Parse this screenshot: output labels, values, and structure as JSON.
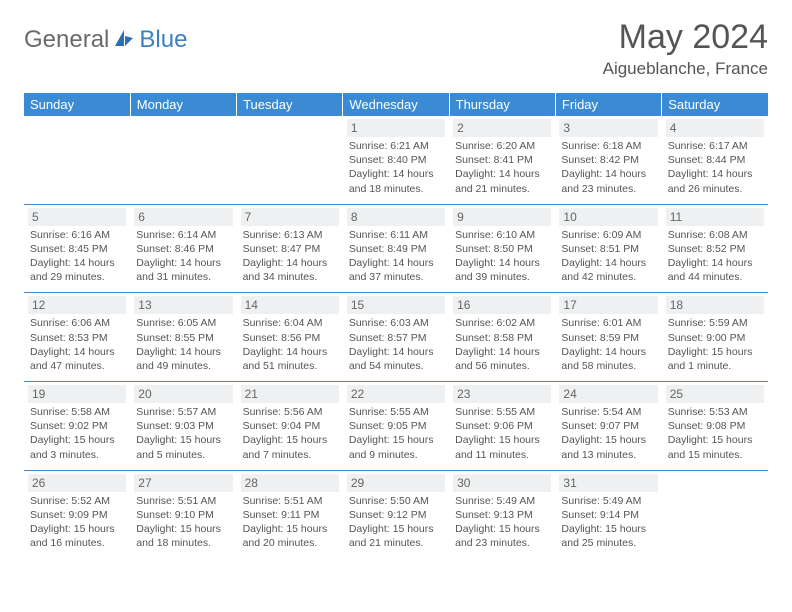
{
  "brand": {
    "part1": "General",
    "part2": "Blue"
  },
  "title": "May 2024",
  "location": "Aigueblanche, France",
  "colors": {
    "header_bg": "#3b8bd4",
    "header_text": "#ffffff",
    "daynum_bg": "#eef0f1",
    "border": "#3b8bd4",
    "text": "#555555",
    "brand_gray": "#6a6a6a",
    "brand_blue": "#3b7fc4"
  },
  "day_headers": [
    "Sunday",
    "Monday",
    "Tuesday",
    "Wednesday",
    "Thursday",
    "Friday",
    "Saturday"
  ],
  "weeks": [
    [
      {
        "n": "",
        "sr": "",
        "ss": "",
        "dl": ""
      },
      {
        "n": "",
        "sr": "",
        "ss": "",
        "dl": ""
      },
      {
        "n": "",
        "sr": "",
        "ss": "",
        "dl": ""
      },
      {
        "n": "1",
        "sr": "Sunrise: 6:21 AM",
        "ss": "Sunset: 8:40 PM",
        "dl": "Daylight: 14 hours and 18 minutes."
      },
      {
        "n": "2",
        "sr": "Sunrise: 6:20 AM",
        "ss": "Sunset: 8:41 PM",
        "dl": "Daylight: 14 hours and 21 minutes."
      },
      {
        "n": "3",
        "sr": "Sunrise: 6:18 AM",
        "ss": "Sunset: 8:42 PM",
        "dl": "Daylight: 14 hours and 23 minutes."
      },
      {
        "n": "4",
        "sr": "Sunrise: 6:17 AM",
        "ss": "Sunset: 8:44 PM",
        "dl": "Daylight: 14 hours and 26 minutes."
      }
    ],
    [
      {
        "n": "5",
        "sr": "Sunrise: 6:16 AM",
        "ss": "Sunset: 8:45 PM",
        "dl": "Daylight: 14 hours and 29 minutes."
      },
      {
        "n": "6",
        "sr": "Sunrise: 6:14 AM",
        "ss": "Sunset: 8:46 PM",
        "dl": "Daylight: 14 hours and 31 minutes."
      },
      {
        "n": "7",
        "sr": "Sunrise: 6:13 AM",
        "ss": "Sunset: 8:47 PM",
        "dl": "Daylight: 14 hours and 34 minutes."
      },
      {
        "n": "8",
        "sr": "Sunrise: 6:11 AM",
        "ss": "Sunset: 8:49 PM",
        "dl": "Daylight: 14 hours and 37 minutes."
      },
      {
        "n": "9",
        "sr": "Sunrise: 6:10 AM",
        "ss": "Sunset: 8:50 PM",
        "dl": "Daylight: 14 hours and 39 minutes."
      },
      {
        "n": "10",
        "sr": "Sunrise: 6:09 AM",
        "ss": "Sunset: 8:51 PM",
        "dl": "Daylight: 14 hours and 42 minutes."
      },
      {
        "n": "11",
        "sr": "Sunrise: 6:08 AM",
        "ss": "Sunset: 8:52 PM",
        "dl": "Daylight: 14 hours and 44 minutes."
      }
    ],
    [
      {
        "n": "12",
        "sr": "Sunrise: 6:06 AM",
        "ss": "Sunset: 8:53 PM",
        "dl": "Daylight: 14 hours and 47 minutes."
      },
      {
        "n": "13",
        "sr": "Sunrise: 6:05 AM",
        "ss": "Sunset: 8:55 PM",
        "dl": "Daylight: 14 hours and 49 minutes."
      },
      {
        "n": "14",
        "sr": "Sunrise: 6:04 AM",
        "ss": "Sunset: 8:56 PM",
        "dl": "Daylight: 14 hours and 51 minutes."
      },
      {
        "n": "15",
        "sr": "Sunrise: 6:03 AM",
        "ss": "Sunset: 8:57 PM",
        "dl": "Daylight: 14 hours and 54 minutes."
      },
      {
        "n": "16",
        "sr": "Sunrise: 6:02 AM",
        "ss": "Sunset: 8:58 PM",
        "dl": "Daylight: 14 hours and 56 minutes."
      },
      {
        "n": "17",
        "sr": "Sunrise: 6:01 AM",
        "ss": "Sunset: 8:59 PM",
        "dl": "Daylight: 14 hours and 58 minutes."
      },
      {
        "n": "18",
        "sr": "Sunrise: 5:59 AM",
        "ss": "Sunset: 9:00 PM",
        "dl": "Daylight: 15 hours and 1 minute."
      }
    ],
    [
      {
        "n": "19",
        "sr": "Sunrise: 5:58 AM",
        "ss": "Sunset: 9:02 PM",
        "dl": "Daylight: 15 hours and 3 minutes."
      },
      {
        "n": "20",
        "sr": "Sunrise: 5:57 AM",
        "ss": "Sunset: 9:03 PM",
        "dl": "Daylight: 15 hours and 5 minutes."
      },
      {
        "n": "21",
        "sr": "Sunrise: 5:56 AM",
        "ss": "Sunset: 9:04 PM",
        "dl": "Daylight: 15 hours and 7 minutes."
      },
      {
        "n": "22",
        "sr": "Sunrise: 5:55 AM",
        "ss": "Sunset: 9:05 PM",
        "dl": "Daylight: 15 hours and 9 minutes."
      },
      {
        "n": "23",
        "sr": "Sunrise: 5:55 AM",
        "ss": "Sunset: 9:06 PM",
        "dl": "Daylight: 15 hours and 11 minutes."
      },
      {
        "n": "24",
        "sr": "Sunrise: 5:54 AM",
        "ss": "Sunset: 9:07 PM",
        "dl": "Daylight: 15 hours and 13 minutes."
      },
      {
        "n": "25",
        "sr": "Sunrise: 5:53 AM",
        "ss": "Sunset: 9:08 PM",
        "dl": "Daylight: 15 hours and 15 minutes."
      }
    ],
    [
      {
        "n": "26",
        "sr": "Sunrise: 5:52 AM",
        "ss": "Sunset: 9:09 PM",
        "dl": "Daylight: 15 hours and 16 minutes."
      },
      {
        "n": "27",
        "sr": "Sunrise: 5:51 AM",
        "ss": "Sunset: 9:10 PM",
        "dl": "Daylight: 15 hours and 18 minutes."
      },
      {
        "n": "28",
        "sr": "Sunrise: 5:51 AM",
        "ss": "Sunset: 9:11 PM",
        "dl": "Daylight: 15 hours and 20 minutes."
      },
      {
        "n": "29",
        "sr": "Sunrise: 5:50 AM",
        "ss": "Sunset: 9:12 PM",
        "dl": "Daylight: 15 hours and 21 minutes."
      },
      {
        "n": "30",
        "sr": "Sunrise: 5:49 AM",
        "ss": "Sunset: 9:13 PM",
        "dl": "Daylight: 15 hours and 23 minutes."
      },
      {
        "n": "31",
        "sr": "Sunrise: 5:49 AM",
        "ss": "Sunset: 9:14 PM",
        "dl": "Daylight: 15 hours and 25 minutes."
      },
      {
        "n": "",
        "sr": "",
        "ss": "",
        "dl": ""
      }
    ]
  ]
}
